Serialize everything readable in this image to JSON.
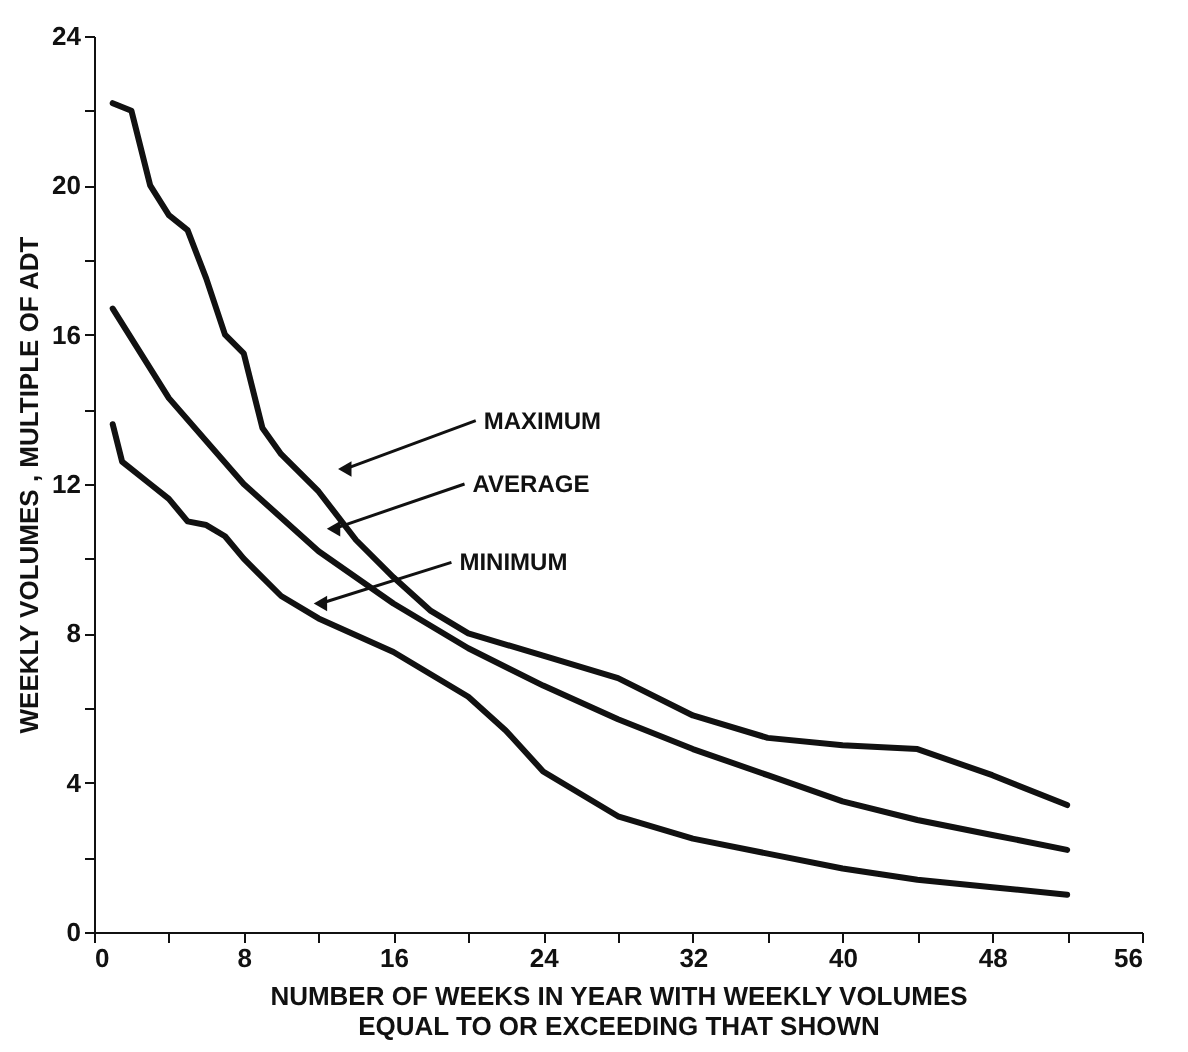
{
  "chart_data": {
    "type": "line",
    "xlabel": "NUMBER OF WEEKS IN YEAR WITH WEEKLY VOLUMES\nEQUAL TO OR EXCEEDING THAT SHOWN",
    "ylabel": "WEEKLY VOLUMES , MULTIPLE OF ADT",
    "xlim": [
      0,
      56
    ],
    "ylim": [
      0,
      24
    ],
    "xticks": [
      0,
      {
        "value": 4,
        "label": null
      },
      8,
      {
        "value": 12,
        "label": null
      },
      16,
      {
        "value": 20,
        "label": null
      },
      24,
      {
        "value": 28,
        "label": null
      },
      32,
      {
        "value": 36,
        "label": null
      },
      40,
      {
        "value": 44,
        "label": null
      },
      48,
      {
        "value": 52,
        "label": null
      },
      56
    ],
    "yticks": [
      0,
      {
        "value": 2,
        "label": null
      },
      4,
      {
        "value": 6,
        "label": null
      },
      8,
      {
        "value": 10,
        "label": null
      },
      12,
      {
        "value": 14,
        "label": null
      },
      16,
      {
        "value": 18,
        "label": null
      },
      20,
      {
        "value": 22,
        "label": null
      },
      24
    ],
    "grid": false,
    "marker": "none",
    "line_style": "solid",
    "series": [
      {
        "color": "#111111",
        "x": [
          1,
          2,
          3,
          4,
          5,
          6,
          7,
          8,
          9,
          10,
          12,
          14,
          16,
          18,
          20,
          24,
          28,
          32,
          36,
          40,
          44,
          48,
          52
        ],
        "values": [
          22.2,
          22,
          20,
          19.2,
          18.8,
          17.5,
          16,
          15.5,
          13.5,
          12.8,
          11.8,
          10.5,
          9.5,
          8.6,
          8,
          7.4,
          6.8,
          5.8,
          5.2,
          5,
          4.9,
          4.2,
          3.4
        ]
      },
      {
        "color": "#111111",
        "x": [
          1,
          4,
          8,
          12,
          16,
          20,
          24,
          28,
          32,
          36,
          40,
          44,
          48,
          52
        ],
        "values": [
          16.7,
          14.3,
          12,
          10.2,
          8.8,
          7.6,
          6.6,
          5.7,
          4.9,
          4.2,
          3.5,
          3,
          2.6,
          2.2
        ]
      },
      {
        "color": "#111111",
        "x": [
          1,
          1.5,
          3,
          4,
          5,
          6,
          7,
          8,
          10,
          12,
          16,
          20,
          22,
          24,
          28,
          32,
          36,
          40,
          44,
          48,
          52
        ],
        "values": [
          13.6,
          12.6,
          12,
          11.6,
          11,
          10.9,
          10.6,
          10,
          9,
          8.4,
          7.5,
          6.3,
          5.4,
          4.3,
          3.1,
          2.5,
          2.1,
          1.7,
          1.4,
          1.2,
          1
        ]
      }
    ],
    "annotations": [
      {
        "text": "MAXIMUM",
        "x": 13.4,
        "y": 12.4
      },
      {
        "text": "AVERAGE",
        "x": 12.8,
        "y": 10.8
      },
      {
        "text": "MINIMUM",
        "x": 12.1,
        "y": 8.8
      }
    ]
  }
}
